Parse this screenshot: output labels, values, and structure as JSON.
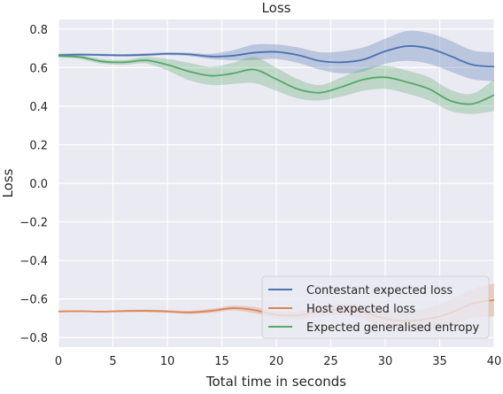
{
  "chart_data": {
    "type": "line",
    "title": "Loss",
    "xlabel": "Total time in seconds",
    "ylabel": "Loss",
    "xlim": [
      0,
      40
    ],
    "ylim": [
      -0.85,
      0.85
    ],
    "xticks": [
      0,
      5,
      10,
      15,
      20,
      25,
      30,
      35,
      40
    ],
    "xtick_labels": [
      "0",
      "5",
      "10",
      "15",
      "20",
      "25",
      "30",
      "35",
      "40"
    ],
    "yticks": [
      0.8,
      0.6,
      0.4,
      0.2,
      0.0,
      -0.2,
      -0.4,
      -0.6,
      -0.8
    ],
    "ytick_labels": [
      "0.8",
      "0.6",
      "0.4",
      "0.2",
      "0.0",
      "−0.2",
      "−0.4",
      "−0.6",
      "−0.8"
    ],
    "grid": true,
    "legend_position": "bottom-right",
    "series": [
      {
        "name": "Contestant expected loss",
        "color": "#4c72b0",
        "x": [
          0,
          2,
          4,
          6,
          8,
          10,
          12,
          14,
          16,
          18,
          20,
          22,
          24,
          26,
          28,
          30,
          32,
          34,
          36,
          38,
          40
        ],
        "y": [
          0.665,
          0.668,
          0.666,
          0.664,
          0.667,
          0.672,
          0.669,
          0.658,
          0.662,
          0.678,
          0.682,
          0.665,
          0.635,
          0.628,
          0.642,
          0.685,
          0.712,
          0.7,
          0.66,
          0.615,
          0.605
        ],
        "lower": [
          0.66,
          0.662,
          0.66,
          0.658,
          0.66,
          0.665,
          0.66,
          0.645,
          0.638,
          0.64,
          0.645,
          0.625,
          0.59,
          0.57,
          0.58,
          0.62,
          0.635,
          0.62,
          0.58,
          0.54,
          0.53
        ],
        "upper": [
          0.672,
          0.674,
          0.672,
          0.67,
          0.674,
          0.68,
          0.678,
          0.672,
          0.69,
          0.72,
          0.72,
          0.705,
          0.68,
          0.685,
          0.705,
          0.75,
          0.79,
          0.78,
          0.74,
          0.69,
          0.68
        ]
      },
      {
        "name": "Host expected loss",
        "color": "#dd8452",
        "x": [
          0,
          2,
          4,
          6,
          8,
          10,
          12,
          14,
          16,
          18,
          20,
          22,
          24,
          26,
          28,
          30,
          32,
          34,
          36,
          38,
          40
        ],
        "y": [
          -0.665,
          -0.664,
          -0.666,
          -0.663,
          -0.662,
          -0.665,
          -0.67,
          -0.662,
          -0.648,
          -0.658,
          -0.683,
          -0.685,
          -0.665,
          -0.655,
          -0.668,
          -0.702,
          -0.715,
          -0.703,
          -0.673,
          -0.625,
          -0.605
        ],
        "lower": [
          -0.668,
          -0.668,
          -0.67,
          -0.668,
          -0.668,
          -0.672,
          -0.678,
          -0.672,
          -0.66,
          -0.674,
          -0.7,
          -0.705,
          -0.69,
          -0.685,
          -0.705,
          -0.745,
          -0.765,
          -0.76,
          -0.74,
          -0.7,
          -0.69
        ],
        "upper": [
          -0.662,
          -0.66,
          -0.662,
          -0.658,
          -0.656,
          -0.658,
          -0.662,
          -0.652,
          -0.636,
          -0.642,
          -0.666,
          -0.665,
          -0.64,
          -0.625,
          -0.63,
          -0.66,
          -0.665,
          -0.645,
          -0.605,
          -0.55,
          -0.52
        ]
      },
      {
        "name": "Expected generalised entropy",
        "color": "#55a868",
        "x": [
          0,
          2,
          4,
          6,
          8,
          10,
          12,
          14,
          16,
          18,
          20,
          22,
          24,
          26,
          28,
          30,
          32,
          34,
          36,
          38,
          40
        ],
        "y": [
          0.66,
          0.655,
          0.632,
          0.628,
          0.638,
          0.615,
          0.58,
          0.558,
          0.57,
          0.59,
          0.54,
          0.488,
          0.47,
          0.5,
          0.538,
          0.55,
          0.525,
          0.49,
          0.428,
          0.412,
          0.458
        ],
        "lower": [
          0.655,
          0.645,
          0.62,
          0.615,
          0.622,
          0.585,
          0.535,
          0.51,
          0.515,
          0.52,
          0.48,
          0.44,
          0.43,
          0.45,
          0.48,
          0.49,
          0.465,
          0.43,
          0.375,
          0.36,
          0.375
        ],
        "upper": [
          0.665,
          0.665,
          0.645,
          0.64,
          0.655,
          0.645,
          0.625,
          0.605,
          0.625,
          0.655,
          0.6,
          0.54,
          0.51,
          0.55,
          0.595,
          0.61,
          0.585,
          0.55,
          0.485,
          0.465,
          0.54
        ]
      }
    ]
  }
}
